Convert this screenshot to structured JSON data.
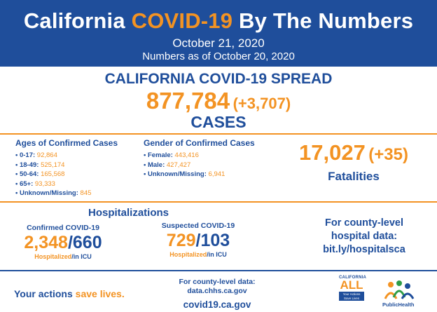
{
  "header": {
    "title_pre": "California ",
    "title_highlight": "COVID-19",
    "title_post": " By The Numbers",
    "date": "October 21, 2020",
    "as_of": "Numbers as of October 20, 2020"
  },
  "spread": {
    "title": "CALIFORNIA COVID-19 SPREAD",
    "cases": "877,784",
    "cases_delta": "(+3,707)",
    "cases_label": "CASES"
  },
  "ages": {
    "title": "Ages of Confirmed Cases",
    "items": [
      {
        "label": "• 0-17: ",
        "value": "92,864"
      },
      {
        "label": "• 18-49: ",
        "value": "525,174"
      },
      {
        "label": "• 50-64: ",
        "value": "165,568"
      },
      {
        "label": "• 65+: ",
        "value": "93,333"
      },
      {
        "label": "• Unknown/Missing: ",
        "value": "845"
      }
    ]
  },
  "gender": {
    "title": "Gender of Confirmed Cases",
    "items": [
      {
        "label": "• Female: ",
        "value": "443,416"
      },
      {
        "label": "• Male: ",
        "value": "427,427"
      },
      {
        "label": "• Unknown/Missing: ",
        "value": "6,941"
      }
    ]
  },
  "fatalities": {
    "count": "17,027",
    "delta": "(+35)",
    "label": "Fatalities"
  },
  "hospitalizations": {
    "title": "Hospitalizations",
    "confirmed": {
      "caption": "Confirmed COVID-19",
      "hospitalized": "2,348",
      "icu": "660",
      "sub_hosp": "Hospitalized",
      "sub_icu": "/in ICU"
    },
    "suspected": {
      "caption": "Suspected COVID-19",
      "hospitalized": "729",
      "icu": "103",
      "sub_hosp": "Hospitalized",
      "sub_icu": "/in ICU"
    },
    "county_lines": [
      "For county-level",
      "hospital data:",
      "bit.ly/hospitalsca"
    ]
  },
  "footer": {
    "actions_pre": "Your actions ",
    "actions_highlight": "save lives.",
    "county_data_line1": "For county-level data:",
    "county_data_line2": "data.chhs.ca.gov",
    "site": "covid19.ca.gov",
    "logo_ca_top": "CALIFORNIA",
    "logo_ca_all": "ALL",
    "logo_ca_tag": "Your Actions Save Lives",
    "logo_cdph": "PublicHealth"
  },
  "colors": {
    "blue": "#1f4e9b",
    "orange": "#f39323"
  }
}
